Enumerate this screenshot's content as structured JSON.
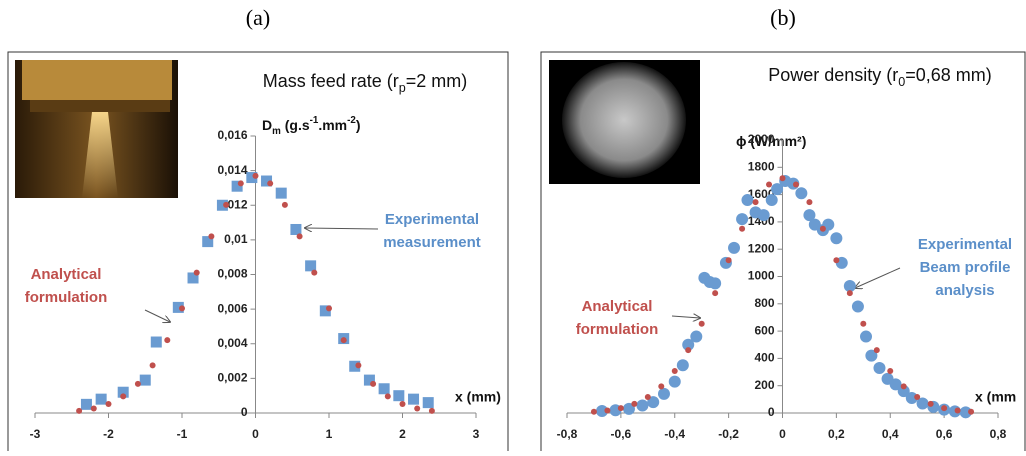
{
  "chart_data": [
    {
      "type": "scatter",
      "panel_label": "(a)",
      "title": [
        "Mass feed rate (r",
        "p",
        "=2 mm)"
      ],
      "ylabel": [
        "D",
        "m",
        " (g.s",
        "-1",
        ".mm",
        "-2",
        ")"
      ],
      "xlabel": "x (mm)",
      "annotations": [
        [
          "Analytical",
          "formulation"
        ],
        [
          "Experimental",
          "measurement"
        ]
      ],
      "xlim": [
        -3,
        3
      ],
      "xticks": [
        -3,
        -2,
        -1,
        0,
        1,
        2,
        3
      ],
      "ylim": [
        0,
        0.016
      ],
      "yticks": [
        0,
        {
          "value": 0.002,
          "label": "0,002"
        },
        {
          "value": 0.004,
          "label": "0,004"
        },
        {
          "value": 0.006,
          "label": "0,006"
        },
        {
          "value": 0.008,
          "label": "0,008"
        },
        {
          "value": 0.01,
          "label": "0,01"
        },
        {
          "value": 0.012,
          "label": "0,012"
        },
        {
          "value": 0.014,
          "label": "0,014"
        },
        {
          "value": 0.016,
          "label": "0,016"
        }
      ],
      "series": [
        {
          "color": "#6a9bd1",
          "marker": "square",
          "x": [
            -2.3,
            -2.1,
            -1.8,
            -1.5,
            -1.35,
            -1.05,
            -0.85,
            -0.65,
            -0.45,
            -0.25,
            -0.05,
            0.15,
            0.35,
            0.55,
            0.75,
            0.95,
            1.2,
            1.35,
            1.55,
            1.75,
            1.95,
            2.15,
            2.35
          ],
          "values": [
            0.0005,
            0.0008,
            0.0012,
            0.0019,
            0.0041,
            0.0061,
            0.0078,
            0.0099,
            0.012,
            0.0131,
            0.0136,
            0.0134,
            0.0127,
            0.0106,
            0.0085,
            0.0059,
            0.0043,
            0.0027,
            0.0019,
            0.0014,
            0.001,
            0.0008,
            0.0006
          ]
        },
        {
          "color": "#c0504d",
          "marker": "dot",
          "x": [
            -2.4,
            -2.2,
            -2.0,
            -1.8,
            -1.6,
            -1.4,
            -1.2,
            -1.0,
            -0.8,
            -0.6,
            -0.4,
            -0.2,
            0,
            0.2,
            0.4,
            0.6,
            0.8,
            1.0,
            1.2,
            1.4,
            1.6,
            1.8,
            2.0,
            2.2,
            2.4
          ],
          "values": [
            0.00012,
            0.00026,
            0.00052,
            0.00096,
            0.00168,
            0.00275,
            0.00421,
            0.00604,
            0.00811,
            0.0102,
            0.01202,
            0.01326,
            0.0137,
            0.01326,
            0.01202,
            0.0102,
            0.00811,
            0.00604,
            0.00421,
            0.00275,
            0.00168,
            0.00096,
            0.00052,
            0.00026,
            0.00012
          ]
        }
      ]
    },
    {
      "type": "scatter",
      "panel_label": "(b)",
      "title": [
        "Power density (r",
        "0",
        "=0,68 mm)"
      ],
      "ylabel": [
        "ϕ (W/mm²)"
      ],
      "xlabel": "x (mm",
      "annotations": [
        [
          "Analytical",
          "formulation"
        ],
        [
          "Experimental",
          "Beam profile",
          "analysis"
        ]
      ],
      "xlim": [
        -0.8,
        0.8
      ],
      "xticks": [
        {
          "value": -0.8,
          "label": "-0,8"
        },
        {
          "value": -0.6,
          "label": "-0,6"
        },
        {
          "value": -0.4,
          "label": "-0,4"
        },
        {
          "value": -0.2,
          "label": "-0,2"
        },
        0,
        {
          "value": 0.2,
          "label": "0,2"
        },
        {
          "value": 0.4,
          "label": "0,4"
        },
        {
          "value": 0.6,
          "label": "0,6"
        },
        {
          "value": 0.8,
          "label": "0,8"
        }
      ],
      "ylim": [
        0,
        2000
      ],
      "yticks": [
        0,
        200,
        400,
        600,
        800,
        1000,
        1200,
        1400,
        1600,
        1800,
        2000
      ],
      "series": [
        {
          "color": "#6a9bd1",
          "marker": "circle",
          "x": [
            -0.67,
            -0.62,
            -0.57,
            -0.52,
            -0.48,
            -0.44,
            -0.4,
            -0.37,
            -0.35,
            -0.32,
            -0.29,
            -0.27,
            -0.25,
            -0.21,
            -0.18,
            -0.15,
            -0.13,
            -0.1,
            -0.07,
            -0.04,
            -0.02,
            0.01,
            0.04,
            0.07,
            0.1,
            0.12,
            0.15,
            0.17,
            0.2,
            0.22,
            0.25,
            0.28,
            0.31,
            0.33,
            0.36,
            0.39,
            0.42,
            0.45,
            0.48,
            0.52,
            0.56,
            0.6,
            0.64,
            0.68
          ],
          "values": [
            15,
            20,
            30,
            55,
            80,
            140,
            230,
            350,
            500,
            560,
            990,
            960,
            950,
            1100,
            1210,
            1420,
            1560,
            1470,
            1450,
            1560,
            1640,
            1700,
            1680,
            1610,
            1450,
            1380,
            1340,
            1380,
            1280,
            1100,
            930,
            780,
            560,
            420,
            330,
            250,
            210,
            160,
            110,
            70,
            45,
            25,
            12,
            5
          ]
        },
        {
          "color": "#c0504d",
          "marker": "dot",
          "x": [
            -0.7,
            -0.65,
            -0.6,
            -0.55,
            -0.5,
            -0.45,
            -0.4,
            -0.35,
            -0.3,
            -0.25,
            -0.2,
            -0.15,
            -0.1,
            -0.05,
            0,
            0.05,
            0.1,
            0.15,
            0.2,
            0.25,
            0.3,
            0.35,
            0.4,
            0.45,
            0.5,
            0.55,
            0.6,
            0.65,
            0.7
          ],
          "values": [
            9,
            18,
            36,
            67,
            117,
            195,
            308,
            461,
            654,
            878,
            1119,
            1350,
            1545,
            1674,
            1720,
            1674,
            1545,
            1350,
            1119,
            878,
            654,
            461,
            308,
            195,
            117,
            67,
            36,
            18,
            9
          ]
        }
      ]
    }
  ]
}
